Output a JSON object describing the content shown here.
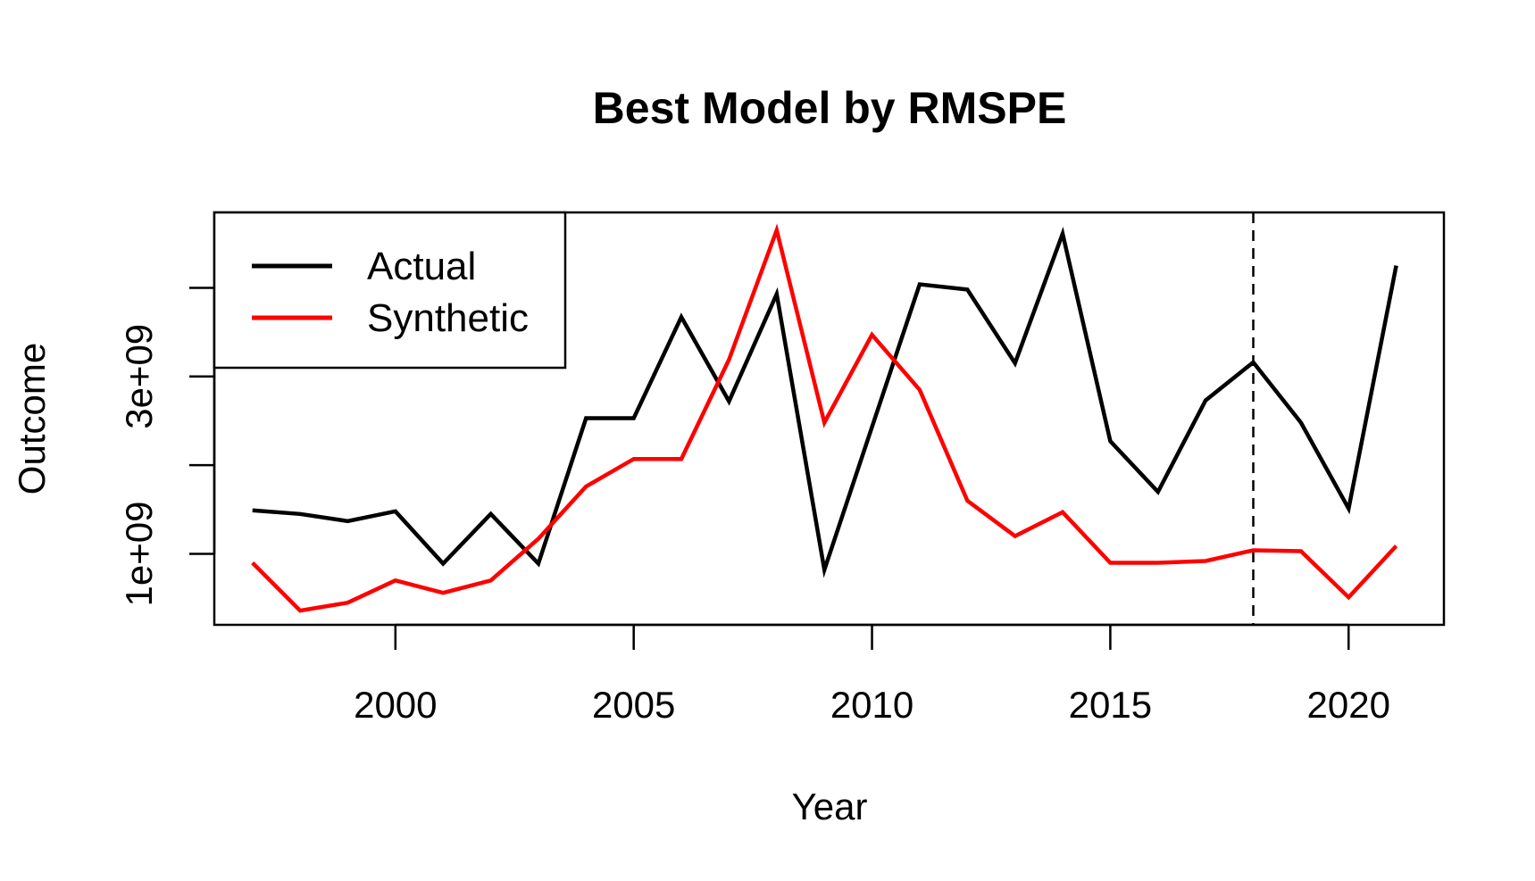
{
  "chart_data": {
    "type": "line",
    "title": "Best Model by RMSPE",
    "xlabel": "Year",
    "ylabel": "Outcome",
    "xlim": [
      1996.2,
      2022.0
    ],
    "ylim": [
      200000000,
      4850000000
    ],
    "x_ticks": [
      2000,
      2005,
      2010,
      2015,
      2020
    ],
    "x_tick_labels": [
      "2000",
      "2005",
      "2010",
      "2015",
      "2020"
    ],
    "y_ticks": [
      1000000000,
      2000000000,
      3000000000,
      4000000000
    ],
    "y_tick_labels": [
      "1e+09",
      "",
      "3e+09",
      ""
    ],
    "treatment_year": 2018,
    "legend_position": "top-left",
    "x": [
      1997,
      1998,
      1999,
      2000,
      2001,
      2002,
      2003,
      2004,
      2005,
      2006,
      2007,
      2008,
      2009,
      2010,
      2011,
      2012,
      2013,
      2014,
      2015,
      2016,
      2017,
      2018,
      2019,
      2020,
      2021
    ],
    "series": [
      {
        "name": "Actual",
        "color": "#000000",
        "values": [
          1490000000,
          1450000000,
          1370000000,
          1480000000,
          890000000,
          1450000000,
          890000000,
          2530000000,
          2530000000,
          3670000000,
          2720000000,
          3930000000,
          820000000,
          2430000000,
          4040000000,
          3980000000,
          3150000000,
          4610000000,
          2270000000,
          1700000000,
          2730000000,
          3160000000,
          2480000000,
          1510000000,
          4250000000
        ]
      },
      {
        "name": "Synthetic",
        "color": "#ff0000",
        "values": [
          900000000,
          360000000,
          450000000,
          700000000,
          560000000,
          700000000,
          1170000000,
          1760000000,
          2070000000,
          2070000000,
          3190000000,
          4650000000,
          2480000000,
          3470000000,
          2850000000,
          1600000000,
          1200000000,
          1470000000,
          900000000,
          900000000,
          920000000,
          1040000000,
          1030000000,
          510000000,
          1090000000
        ]
      }
    ]
  }
}
